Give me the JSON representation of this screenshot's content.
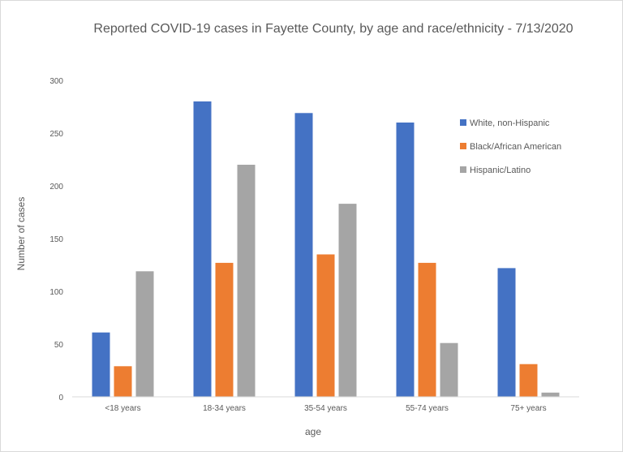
{
  "chart_data": {
    "type": "bar",
    "title": "Reported COVID-19 cases in Fayette County, by age and race/ethnicity - 7/13/2020",
    "xlabel": "age",
    "ylabel": "Number of cases",
    "ylim": [
      0,
      300
    ],
    "yticks": [
      0,
      50,
      100,
      150,
      200,
      250,
      300
    ],
    "categories": [
      "<18 years",
      "18-34 years",
      "35-54 years",
      "55-74 years",
      "75+ years"
    ],
    "series": [
      {
        "name": "White, non-Hispanic",
        "color": "#4472c4",
        "values": [
          61,
          280,
          269,
          260,
          122
        ]
      },
      {
        "name": "Black/African American",
        "color": "#ed7d31",
        "values": [
          29,
          127,
          135,
          127,
          31
        ]
      },
      {
        "name": "Hispanic/Latino",
        "color": "#a5a5a5",
        "values": [
          119,
          220,
          183,
          51,
          4
        ]
      }
    ],
    "grid": false,
    "legend_position": "right"
  }
}
